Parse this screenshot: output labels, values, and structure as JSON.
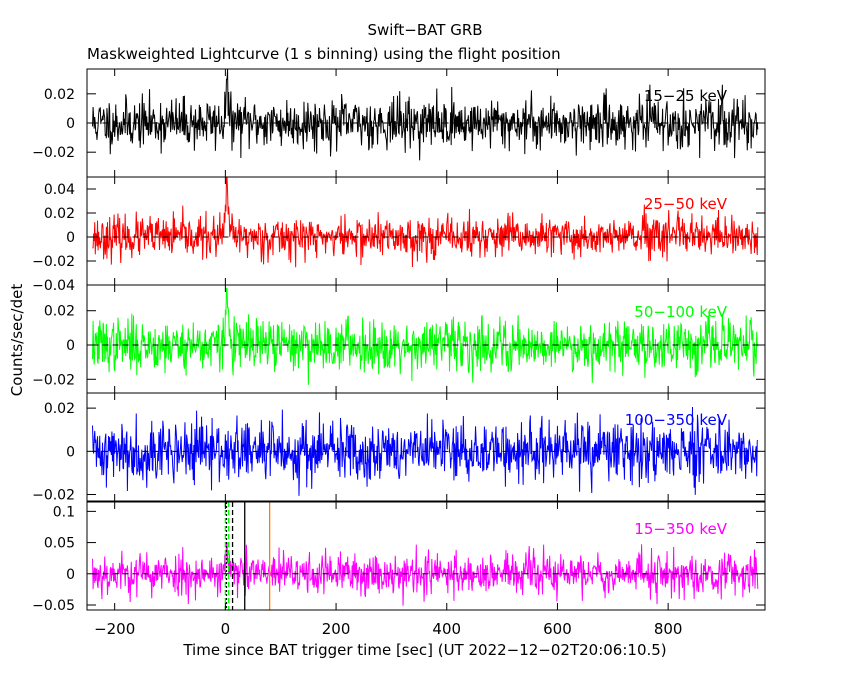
{
  "chart_data": {
    "type": "line",
    "title": "Swift−BAT GRB",
    "subtitle": "Maskweighted Lightcurve (1 s binning) using the flight position",
    "xlabel": "Time since BAT trigger time [sec] (UT 2022−12−02T20:06:10.5)",
    "ylabel": "Counts/sec/det",
    "xlim": [
      -250,
      975
    ],
    "xticks": [
      -200,
      0,
      200,
      400,
      600,
      800
    ],
    "xtick_labels": [
      "−200",
      "0",
      "200",
      "400",
      "600",
      "800"
    ],
    "panels": [
      {
        "id": "15-25",
        "label": "15−25 keV",
        "color": "#000000",
        "ylim": [
          -0.037,
          0.037
        ],
        "yticks": [
          -0.02,
          0,
          0.02
        ],
        "ytick_labels": [
          "−0.02",
          "0",
          "0.02"
        ],
        "noise_sigma": 0.0085,
        "burst_peak": 0.03,
        "seed": 11
      },
      {
        "id": "25-50",
        "label": "25−50 keV",
        "color": "#ff0000",
        "ylim": [
          -0.04,
          0.05
        ],
        "yticks": [
          -0.04,
          -0.02,
          0,
          0.02,
          0.04
        ],
        "ytick_labels": [
          "−0.04",
          "−0.02",
          "0",
          "0.02",
          "0.04"
        ],
        "noise_sigma": 0.0085,
        "burst_peak": 0.05,
        "seed": 23
      },
      {
        "id": "50-100",
        "label": "50−100 keV",
        "color": "#00ff00",
        "ylim": [
          -0.028,
          0.035
        ],
        "yticks": [
          -0.02,
          0,
          0.02
        ],
        "ytick_labels": [
          "−0.02",
          "0",
          "0.02"
        ],
        "noise_sigma": 0.0075,
        "burst_peak": 0.033,
        "seed": 37
      },
      {
        "id": "100-350",
        "label": "100−350 keV",
        "color": "#0000ff",
        "ylim": [
          -0.023,
          0.027
        ],
        "yticks": [
          -0.02,
          0,
          0.02
        ],
        "ytick_labels": [
          "−0.02",
          "0",
          "0.02"
        ],
        "noise_sigma": 0.0072,
        "burst_peak": 0.0,
        "seed": 41
      },
      {
        "id": "15-350",
        "label": "15−350 keV",
        "color": "#ff00ff",
        "ylim": [
          -0.058,
          0.115
        ],
        "yticks": [
          -0.05,
          0,
          0.05,
          0.1
        ],
        "ytick_labels": [
          "−0.05",
          "0",
          "0.05",
          "0.1"
        ],
        "noise_sigma": 0.017,
        "burst_peak": 0.05,
        "seed": 53,
        "markers": [
          {
            "x": 0,
            "color": "#00ff00",
            "style": "dashed"
          },
          {
            "x": 6,
            "color": "#00ff00",
            "style": "dashed"
          },
          {
            "x": 2,
            "color": "#000000",
            "style": "dotted"
          },
          {
            "x": 13,
            "color": "#000000",
            "style": "dashed"
          },
          {
            "x": 35,
            "color": "#000000",
            "style": "solid"
          },
          {
            "x": 80,
            "color": "#ff8000",
            "style": "solid"
          }
        ]
      }
    ],
    "time_range": [
      -240,
      962
    ],
    "bin_size": 1,
    "zero_line_style": "dashed"
  }
}
